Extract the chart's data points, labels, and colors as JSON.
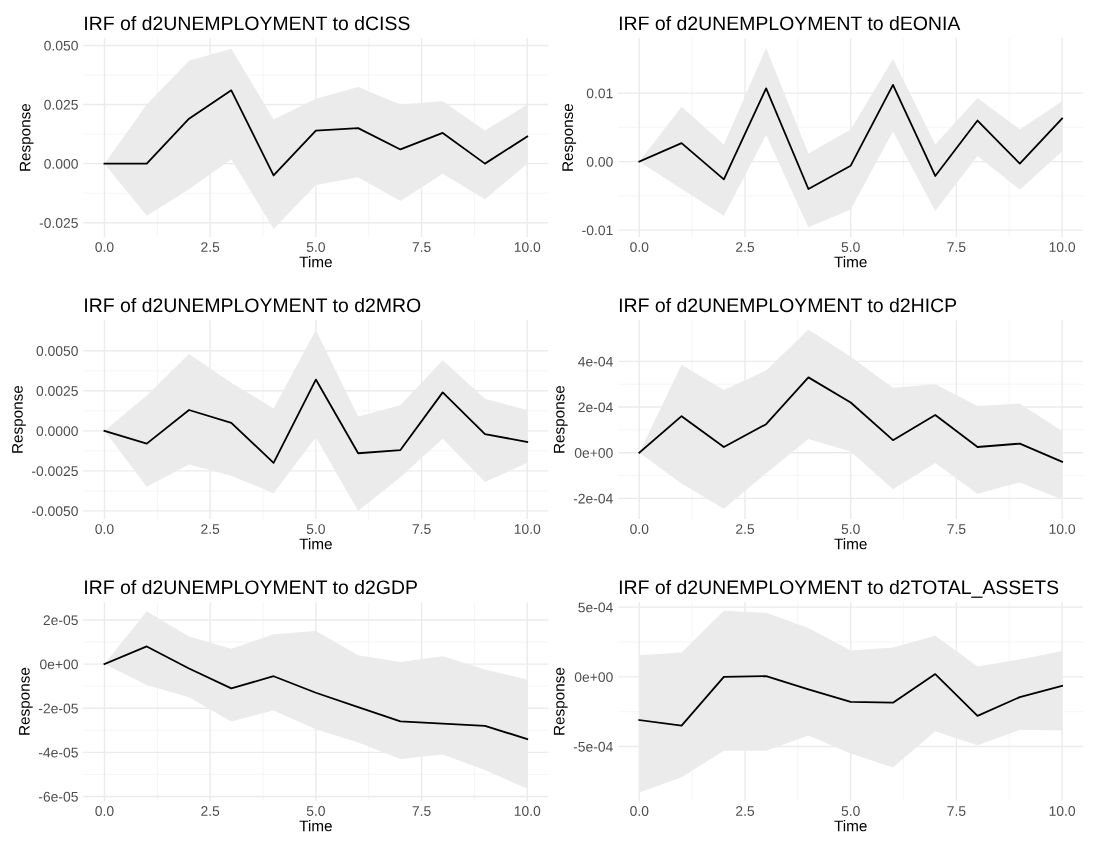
{
  "chart_data": [
    {
      "type": "line",
      "title": "IRF of d2UNEMPLOYMENT to dCISS",
      "xlabel": "Time",
      "ylabel": "Response",
      "grid": true,
      "x": [
        0,
        1,
        2,
        3,
        4,
        5,
        6,
        7,
        8,
        9,
        10
      ],
      "xlim": [
        -0.5,
        10.5
      ],
      "xticks": [
        {
          "value": 0,
          "label": "0.0"
        },
        {
          "value": 2.5,
          "label": "2.5"
        },
        {
          "value": 5,
          "label": "5.0"
        },
        {
          "value": 7.5,
          "label": "7.5"
        },
        {
          "value": 10,
          "label": "10.0"
        }
      ],
      "ylim": [
        -0.031,
        0.053
      ],
      "yticks": [
        {
          "value": -0.025,
          "label": "-0.025"
        },
        {
          "value": 0,
          "label": "0.000"
        },
        {
          "value": 0.025,
          "label": "0.025"
        },
        {
          "value": 0.05,
          "label": "0.050"
        }
      ],
      "series": [
        {
          "color": "#000000",
          "values": [
            0,
            0,
            0.019,
            0.031,
            -0.005,
            0.014,
            0.015,
            0.006,
            0.013,
            0,
            0.0115
          ],
          "upper": [
            0,
            0.025,
            0.0435,
            0.0486,
            0.0187,
            0.0274,
            0.0324,
            0.025,
            0.0264,
            0.014,
            0.025
          ],
          "lower": [
            0,
            -0.022,
            -0.0108,
            0.0019,
            -0.0277,
            -0.009,
            -0.0058,
            -0.0158,
            -0.0043,
            -0.0151,
            0
          ]
        }
      ]
    },
    {
      "type": "line",
      "title": "IRF of d2UNEMPLOYMENT to dEONIA",
      "xlabel": "Time",
      "ylabel": "Response",
      "grid": true,
      "x": [
        0,
        1,
        2,
        3,
        4,
        5,
        6,
        7,
        8,
        9,
        10
      ],
      "xlim": [
        -0.5,
        10.5
      ],
      "xticks": [
        {
          "value": 0,
          "label": "0.0"
        },
        {
          "value": 2.5,
          "label": "2.5"
        },
        {
          "value": 5,
          "label": "5.0"
        },
        {
          "value": 7.5,
          "label": "7.5"
        },
        {
          "value": 10,
          "label": "10.0"
        }
      ],
      "ylim": [
        -0.011,
        0.018
      ],
      "yticks": [
        {
          "value": -0.01,
          "label": "-0.01"
        },
        {
          "value": 0,
          "label": "0.00"
        },
        {
          "value": 0.01,
          "label": "0.01"
        }
      ],
      "series": [
        {
          "color": "#000000",
          "values": [
            0,
            0.0027,
            -0.0026,
            0.0107,
            -0.004,
            -0.0006,
            0.0112,
            -0.0021,
            0.006,
            -0.0003,
            0.0063
          ],
          "upper": [
            0,
            0.008,
            0.0025,
            0.0166,
            0.0012,
            0.0047,
            0.015,
            0.0025,
            0.0093,
            0.0047,
            0.0088
          ],
          "lower": [
            0,
            -0.004,
            -0.0079,
            0.0039,
            -0.0096,
            -0.007,
            0.0044,
            -0.0072,
            0.0008,
            -0.0041,
            0.0015
          ]
        }
      ]
    },
    {
      "type": "line",
      "title": "IRF of d2UNEMPLOYMENT to d2MRO",
      "xlabel": "Time",
      "ylabel": "Response",
      "grid": true,
      "x": [
        0,
        1,
        2,
        3,
        4,
        5,
        6,
        7,
        8,
        9,
        10
      ],
      "xlim": [
        -0.5,
        10.5
      ],
      "xticks": [
        {
          "value": 0,
          "label": "0.0"
        },
        {
          "value": 2.5,
          "label": "2.5"
        },
        {
          "value": 5,
          "label": "5.0"
        },
        {
          "value": 7.5,
          "label": "7.5"
        },
        {
          "value": 10,
          "label": "10.0"
        }
      ],
      "ylim": [
        -0.0055,
        0.0069
      ],
      "yticks": [
        {
          "value": -0.005,
          "label": "-0.0050"
        },
        {
          "value": -0.0025,
          "label": "-0.0025"
        },
        {
          "value": 0,
          "label": "0.0000"
        },
        {
          "value": 0.0025,
          "label": "0.0025"
        },
        {
          "value": 0.005,
          "label": "0.0050"
        }
      ],
      "series": [
        {
          "color": "#000000",
          "values": [
            0,
            -0.0008,
            0.0013,
            0.0005,
            -0.002,
            0.0032,
            -0.0014,
            -0.0012,
            0.0024,
            -0.0002,
            -0.0007
          ],
          "upper": [
            0,
            0.0022,
            0.0048,
            0.003,
            0.0014,
            0.0063,
            0.0009,
            0.0016,
            0.0044,
            0.002,
            0.0013
          ],
          "lower": [
            0,
            -0.0035,
            -0.0021,
            -0.0028,
            -0.0039,
            -0.0004,
            -0.005,
            -0.0029,
            -0.0005,
            -0.0032,
            -0.002
          ]
        }
      ]
    },
    {
      "type": "line",
      "title": "IRF of d2UNEMPLOYMENT to d2HICP",
      "xlabel": "Time",
      "ylabel": "Response",
      "grid": true,
      "x": [
        0,
        1,
        2,
        3,
        4,
        5,
        6,
        7,
        8,
        9,
        10
      ],
      "xlim": [
        -0.5,
        10.5
      ],
      "xticks": [
        {
          "value": 0,
          "label": "0.0"
        },
        {
          "value": 2.5,
          "label": "2.5"
        },
        {
          "value": 5,
          "label": "5.0"
        },
        {
          "value": 7.5,
          "label": "7.5"
        },
        {
          "value": 10,
          "label": "10.0"
        }
      ],
      "ylim": [
        -0.00029,
        0.00058
      ],
      "yticks": [
        {
          "value": -0.0002,
          "label": "-2e-04"
        },
        {
          "value": 0,
          "label": "0e+00"
        },
        {
          "value": 0.0002,
          "label": "2e-04"
        },
        {
          "value": 0.0004,
          "label": "4e-04"
        }
      ],
      "series": [
        {
          "color": "#000000",
          "values": [
            0,
            0.00016,
            2.5e-05,
            0.000125,
            0.00033,
            0.00022,
            5.5e-05,
            0.000165,
            2.5e-05,
            4e-05,
            -4e-05
          ],
          "upper": [
            0,
            0.000385,
            0.000275,
            0.00036,
            0.00054,
            0.00042,
            0.000285,
            0.0003,
            0.000205,
            0.000215,
            9.5e-05
          ],
          "lower": [
            0,
            -0.000135,
            -0.000245,
            -9e-05,
            6e-05,
            5e-06,
            -0.00016,
            -4.5e-05,
            -0.00018,
            -0.00013,
            -0.000205
          ]
        }
      ]
    },
    {
      "type": "line",
      "title": "IRF of d2UNEMPLOYMENT to d2GDP",
      "xlabel": "Time",
      "ylabel": "Response",
      "grid": true,
      "x": [
        0,
        1,
        2,
        3,
        4,
        5,
        6,
        7,
        8,
        9,
        10
      ],
      "xlim": [
        -0.5,
        10.5
      ],
      "xticks": [
        {
          "value": 0,
          "label": "0.0"
        },
        {
          "value": 2.5,
          "label": "2.5"
        },
        {
          "value": 5,
          "label": "5.0"
        },
        {
          "value": 7.5,
          "label": "7.5"
        },
        {
          "value": 10,
          "label": "10.0"
        }
      ],
      "ylim": [
        -6.2e-05,
        2.8e-05
      ],
      "yticks": [
        {
          "value": -6e-05,
          "label": "-6e-05"
        },
        {
          "value": -4e-05,
          "label": "-4e-05"
        },
        {
          "value": -2e-05,
          "label": "-2e-05"
        },
        {
          "value": 0,
          "label": "0e+00"
        },
        {
          "value": 2e-05,
          "label": "2e-05"
        }
      ],
      "series": [
        {
          "color": "#000000",
          "values": [
            0,
            8e-06,
            -2e-06,
            -1.1e-05,
            -5.5e-06,
            -1.3e-05,
            -1.95e-05,
            -2.6e-05,
            -2.7e-05,
            -2.8e-05,
            -3.4e-05
          ],
          "upper": [
            0,
            2.4e-05,
            1.25e-05,
            7e-06,
            1.35e-05,
            1.5e-05,
            4e-06,
            1e-06,
            3.5e-06,
            -2.5e-06,
            -7e-06
          ],
          "lower": [
            0,
            -9.5e-06,
            -1.5e-05,
            -2.6e-05,
            -2.1e-05,
            -2.95e-05,
            -3.55e-05,
            -4.3e-05,
            -4.1e-05,
            -4.8e-05,
            -5.65e-05
          ]
        }
      ]
    },
    {
      "type": "line",
      "title": "IRF of d2UNEMPLOYMENT to d2TOTAL_ASSETS",
      "xlabel": "Time",
      "ylabel": "Response",
      "grid": true,
      "x": [
        0,
        1,
        2,
        3,
        4,
        5,
        6,
        7,
        8,
        9,
        10
      ],
      "xlim": [
        -0.5,
        10.5
      ],
      "xticks": [
        {
          "value": 0,
          "label": "0.0"
        },
        {
          "value": 2.5,
          "label": "2.5"
        },
        {
          "value": 5,
          "label": "5.0"
        },
        {
          "value": 7.5,
          "label": "7.5"
        },
        {
          "value": 10,
          "label": "10.0"
        }
      ],
      "ylim": [
        -0.00089,
        0.000535
      ],
      "yticks": [
        {
          "value": -0.0005,
          "label": "-5e-04"
        },
        {
          "value": 0,
          "label": "0e+00"
        },
        {
          "value": 0.0005,
          "label": "5e-04"
        }
      ],
      "series": [
        {
          "color": "#000000",
          "values": [
            -0.00031,
            -0.00035,
            0,
            5e-06,
            -9e-05,
            -0.00018,
            -0.000185,
            2e-05,
            -0.00028,
            -0.000145,
            -6.5e-05
          ],
          "upper": [
            0.000155,
            0.000175,
            0.000475,
            0.00046,
            0.00035,
            0.00019,
            0.00021,
            0.000295,
            7.5e-05,
            0.000125,
            0.000185
          ],
          "lower": [
            -0.00083,
            -0.00072,
            -0.00053,
            -0.00053,
            -0.00042,
            -0.00055,
            -0.00065,
            -0.00039,
            -0.00049,
            -0.00038,
            -0.000385
          ]
        }
      ]
    }
  ]
}
